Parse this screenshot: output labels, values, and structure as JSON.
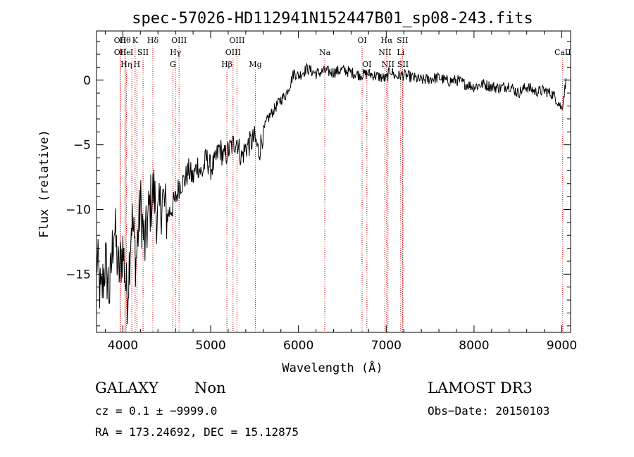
{
  "chart_data": {
    "type": "line",
    "title": "spec-57026-HD112941N152447B01_sp08-243.fits",
    "xlabel": "Wavelength (Å)",
    "ylabel": "Flux (relative)",
    "xlim": [
      3700,
      9100
    ],
    "ylim": [
      -19.5,
      3.8
    ],
    "xticks": [
      4000,
      5000,
      6000,
      7000,
      8000,
      9000
    ],
    "yticks": [
      0,
      -5,
      -10,
      -15
    ],
    "xtick_labels": [
      "4000",
      "5000",
      "6000",
      "7000",
      "8000",
      "9000"
    ],
    "ytick_labels": [
      "0",
      "−5",
      "−10",
      "−15"
    ],
    "series": [
      {
        "name": "flux",
        "x": [
          3700,
          3750,
          3800,
          3850,
          3900,
          3950,
          4000,
          4050,
          4100,
          4150,
          4200,
          4250,
          4300,
          4350,
          4400,
          4450,
          4500,
          4550,
          4600,
          4650,
          4700,
          4750,
          4800,
          4850,
          4900,
          4950,
          5000,
          5050,
          5100,
          5150,
          5200,
          5250,
          5300,
          5350,
          5400,
          5450,
          5500,
          5550,
          5600,
          5650,
          5700,
          5750,
          5800,
          5850,
          5900,
          5950,
          6000,
          6100,
          6200,
          6300,
          6400,
          6500,
          6600,
          6700,
          6800,
          6900,
          7000,
          7050,
          7100,
          7200,
          7300,
          7400,
          7500,
          7600,
          7700,
          7800,
          7900,
          8000,
          8100,
          8200,
          8300,
          8400,
          8500,
          8600,
          8700,
          8800,
          8900,
          8950,
          9000,
          9050
        ],
        "y": [
          -13.5,
          -17.0,
          -14.0,
          -16.5,
          -11.0,
          -15.0,
          -13.0,
          -17.0,
          -10.5,
          -14.0,
          -9.5,
          -13.0,
          -10.0,
          -8.5,
          -11.0,
          -9.0,
          -10.5,
          -10.0,
          -9.2,
          -8.0,
          -7.8,
          -7.0,
          -7.6,
          -6.5,
          -7.3,
          -6.0,
          -6.8,
          -6.4,
          -5.2,
          -6.0,
          -5.5,
          -5.0,
          -4.6,
          -6.0,
          -5.2,
          -4.9,
          -4.5,
          -5.6,
          -4.0,
          -3.0,
          -2.5,
          -2.0,
          -1.5,
          -1.2,
          -0.4,
          0.6,
          0.3,
          0.9,
          0.5,
          0.7,
          0.6,
          0.8,
          0.6,
          0.4,
          0.5,
          0.3,
          0.1,
          0.8,
          0.3,
          0.4,
          0.2,
          0.0,
          0.1,
          0.2,
          -0.1,
          0.0,
          -0.3,
          -0.5,
          -0.3,
          -0.5,
          -0.6,
          -0.4,
          -1.0,
          -0.5,
          -0.9,
          -0.8,
          -1.1,
          -1.6,
          -2.2,
          0.0
        ]
      }
    ],
    "lines": [
      {
        "wave": 3969,
        "tier": 1,
        "label": "OII"
      },
      {
        "wave": 3970,
        "tier": 2,
        "label": "OII"
      },
      {
        "wave": 4025,
        "tier": 1,
        "label": "Hθ"
      },
      {
        "wave": 4026,
        "tier": 2,
        "label": "He"
      },
      {
        "wave": 4040,
        "tier": 3,
        "label": "Hη"
      },
      {
        "wave": 4102,
        "tier": 2,
        "label": "I"
      },
      {
        "wave": 4140,
        "tier": 1,
        "label": "K"
      },
      {
        "wave": 4160,
        "tier": 3,
        "label": "H"
      },
      {
        "wave": 4230,
        "tier": 2,
        "label": "SII"
      },
      {
        "wave": 4342,
        "tier": 1,
        "label": "Hδ"
      },
      {
        "wave": 4570,
        "tier": 3,
        "label": "G"
      },
      {
        "wave": 4600,
        "tier": 2,
        "label": "Hγ"
      },
      {
        "wave": 4640,
        "tier": 1,
        "label": "OIII"
      },
      {
        "wave": 5185,
        "tier": 3,
        "label": "Hβ"
      },
      {
        "wave": 5255,
        "tier": 2,
        "label": "OIII"
      },
      {
        "wave": 5300,
        "tier": 1,
        "label": "OIII"
      },
      {
        "wave": 5510,
        "tier": 3,
        "label": "Mg"
      },
      {
        "wave": 6300,
        "tier": 2,
        "label": "Na"
      },
      {
        "wave": 6725,
        "tier": 1,
        "label": "OI"
      },
      {
        "wave": 6780,
        "tier": 3,
        "label": "OI"
      },
      {
        "wave": 6985,
        "tier": 2,
        "label": "NII"
      },
      {
        "wave": 7005,
        "tier": 1,
        "label": "Hα"
      },
      {
        "wave": 7020,
        "tier": 3,
        "label": "NII"
      },
      {
        "wave": 7165,
        "tier": 2,
        "label": "Li"
      },
      {
        "wave": 7185,
        "tier": 1,
        "label": "SII"
      },
      {
        "wave": 7190,
        "tier": 3,
        "label": "SII"
      },
      {
        "wave": 9010,
        "tier": 2,
        "label": "CaII"
      }
    ]
  },
  "info": {
    "class": "GALAXY",
    "subclass": "Non",
    "survey": "LAMOST DR3",
    "cz": "cz = 0.1 ± −9999.0",
    "obs_date": "Obs−Date: 20150103",
    "coords": "RA = 173.24692, DEC =  15.12875"
  },
  "colors": {
    "spectrum": "#000000",
    "line_markers": "#cc0000",
    "axes": "#000000"
  }
}
